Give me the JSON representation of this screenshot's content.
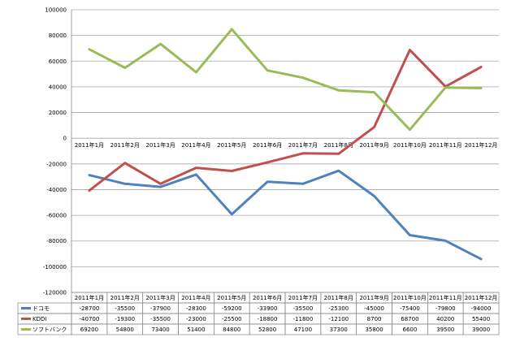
{
  "chart_data": {
    "type": "line",
    "categories": [
      "2011年1月",
      "2011年2月",
      "2011年3月",
      "2011年4月",
      "2011年5月",
      "2011年6月",
      "2011年7月",
      "2011年8月",
      "2011年9月",
      "2011年10月",
      "2011年11月",
      "2011年12月"
    ],
    "y_ticks": [
      "100000",
      "80000",
      "60000",
      "40000",
      "20000",
      "0",
      "-20000",
      "-40000",
      "-60000",
      "-80000",
      "-100000",
      "-120000"
    ],
    "ylim": [
      -120000,
      100000
    ],
    "grid": true,
    "legend": "data-table-below",
    "series": [
      {
        "name": "ドコモ",
        "color": "#4f81bd",
        "values": [
          -28700,
          -35500,
          -37900,
          -28300,
          -59200,
          -33900,
          -35500,
          -25300,
          -45000,
          -75400,
          -79800,
          -94000
        ],
        "labels": [
          "-28700",
          "-35500",
          "-37900",
          "-28300",
          "-59200",
          "-33900",
          "-35500",
          "-25300",
          "-45000",
          "-75400",
          "-79800",
          "-94000"
        ]
      },
      {
        "name": "KDDI",
        "color": "#c0504d",
        "values": [
          -40700,
          -19300,
          -35500,
          -23000,
          -25500,
          -18800,
          -11800,
          -12100,
          8700,
          68700,
          40200,
          55400
        ],
        "labels": [
          "-40700",
          "-19300",
          "-35500",
          "-23000",
          "-25500",
          "-18800",
          "-11800",
          "-12100",
          "8700",
          "68700",
          "40200",
          "55400"
        ]
      },
      {
        "name": "ソフトバンク",
        "color": "#9bbb59",
        "values": [
          69200,
          54800,
          73400,
          51400,
          84800,
          52800,
          47100,
          37300,
          35800,
          6600,
          39500,
          39000
        ],
        "labels": [
          "69200",
          "54800",
          "73400",
          "51400",
          "84800",
          "52800",
          "47100",
          "37300",
          "35800",
          "6600",
          "39500",
          "39000"
        ]
      }
    ]
  }
}
